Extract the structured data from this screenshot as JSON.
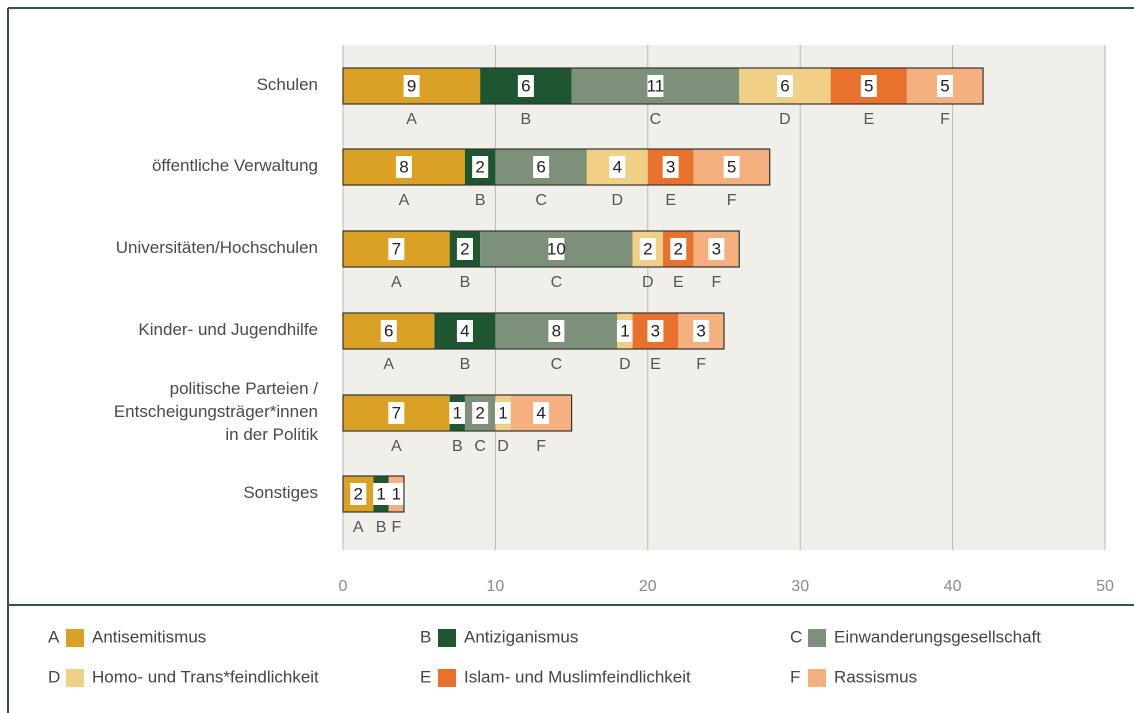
{
  "chart_data": {
    "type": "stacked_bar_horizontal",
    "categories": [
      [
        "Schulen"
      ],
      [
        "öffentliche Verwaltung"
      ],
      [
        "Universitäten/Hochschulen"
      ],
      [
        "Kinder- und Jugendhilfe"
      ],
      [
        "politische Parteien /",
        "Entscheigungsträger*innen",
        "in der Politik"
      ],
      [
        "Sonstiges"
      ]
    ],
    "series": [
      {
        "key": "A",
        "name": "Antisemitismus",
        "color": "#dba124",
        "values": [
          9,
          8,
          7,
          6,
          7,
          2
        ]
      },
      {
        "key": "B",
        "name": "Antiziganismus",
        "color": "#1e5631",
        "values": [
          6,
          2,
          2,
          4,
          1,
          1
        ]
      },
      {
        "key": "C",
        "name": "Einwanderungsgesellschaft",
        "color": "#7d917a",
        "values": [
          11,
          6,
          10,
          8,
          2,
          null
        ]
      },
      {
        "key": "D",
        "name": "Homo- und Trans*feindlichkeit",
        "color": "#f0cf87",
        "values": [
          6,
          4,
          2,
          1,
          1,
          null
        ]
      },
      {
        "key": "E",
        "name": "Islam- und Muslimfeindlichkeit",
        "color": "#e8722d",
        "values": [
          5,
          3,
          2,
          3,
          null,
          null
        ]
      },
      {
        "key": "F",
        "name": "Rassismus",
        "color": "#f4b07f",
        "values": [
          5,
          5,
          3,
          3,
          4,
          1
        ]
      }
    ],
    "xlim": [
      0,
      50
    ],
    "xticks": [
      0,
      10,
      20,
      30,
      40,
      50
    ],
    "grid": true
  }
}
